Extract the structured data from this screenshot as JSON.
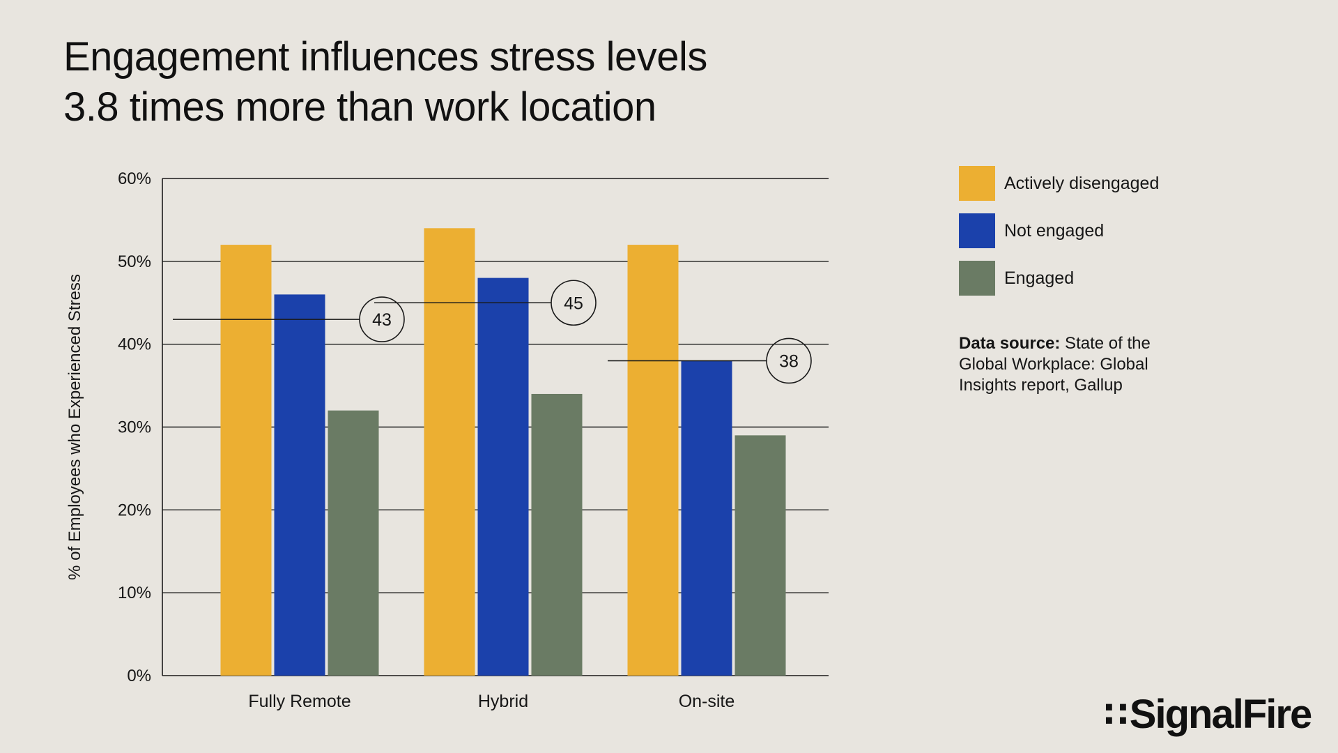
{
  "title_line1": "Engagement influences stress levels",
  "title_line2": "3.8 times more than work location",
  "chart_data": {
    "type": "bar",
    "title": "Engagement influences stress levels 3.8 times more than work location",
    "xlabel": "",
    "ylabel": "% of Employees who Experienced Stress",
    "categories": [
      "Fully Remote",
      "Hybrid",
      "On-site"
    ],
    "series": [
      {
        "name": "Actively disengaged",
        "values": [
          52,
          54,
          52
        ],
        "color": "#ecaf32"
      },
      {
        "name": "Not engaged",
        "values": [
          46,
          48,
          38
        ],
        "color": "#1b41ab"
      },
      {
        "name": "Engaged",
        "values": [
          32,
          34,
          29
        ],
        "color": "#6a7b64"
      }
    ],
    "yticks": [
      0,
      10,
      20,
      30,
      40,
      50,
      60
    ],
    "ytick_labels": [
      "0%",
      "10%",
      "20%",
      "30%",
      "40%",
      "50%",
      "60%"
    ],
    "ylim": [
      0,
      60
    ],
    "grid": true,
    "legend_position": "right",
    "annotations": [
      {
        "category": "Fully Remote",
        "value": 43,
        "label": "43"
      },
      {
        "category": "Hybrid",
        "value": 45,
        "label": "45"
      },
      {
        "category": "On-site",
        "value": 38,
        "label": "38"
      }
    ]
  },
  "legend": [
    {
      "label": "Actively disengaged",
      "color": "#ecaf32"
    },
    {
      "label": "Not engaged",
      "color": "#1b41ab"
    },
    {
      "label": "Engaged",
      "color": "#6a7b64"
    }
  ],
  "source": {
    "bold": "Data source:",
    "text": " State of the Global Workplace: Global Insights report, Gallup"
  },
  "logo": {
    "mark": "∷",
    "text": "SignalFire"
  }
}
